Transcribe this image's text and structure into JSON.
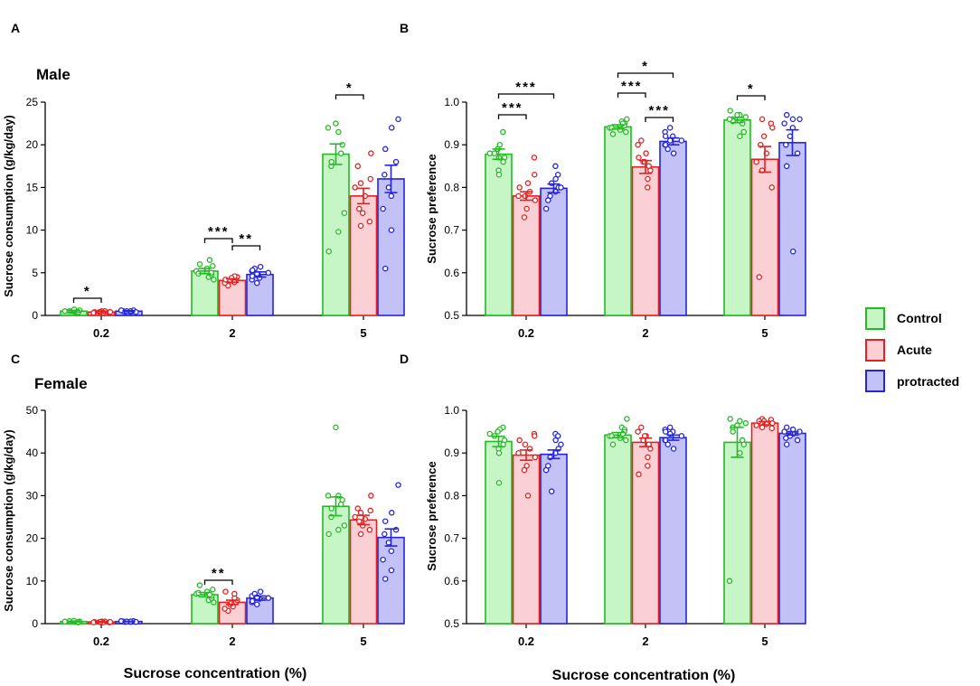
{
  "panels": {
    "A": "A",
    "B": "B",
    "C": "C",
    "D": "D"
  },
  "titles": {
    "male": "Male",
    "female": "Female"
  },
  "axis": {
    "consumption_label": "Sucrose consumption (g/kg/day)",
    "preference_label": "Sucrose preference",
    "x_label": "Sucrose concentration (%)"
  },
  "legend": [
    {
      "label": "Control",
      "color": "#22bb22",
      "fill": "#c6f5c6"
    },
    {
      "label": "Acute",
      "color": "#e52020",
      "fill": "#fbd0d4"
    },
    {
      "label": "protracted",
      "color": "#2424dd",
      "fill": "#c2c2f7"
    }
  ],
  "chart_data": [
    {
      "id": "A",
      "type": "bar",
      "title": "Male",
      "xlabel": "",
      "ylabel": "Sucrose consumption (g/kg/day)",
      "ylim": [
        0,
        25
      ],
      "yticks": [
        0,
        5,
        10,
        15,
        20,
        25
      ],
      "categories": [
        "0.2",
        "2",
        "5"
      ],
      "series": [
        {
          "name": "Control",
          "values": [
            0.5,
            5.2,
            18.9
          ],
          "sem": [
            0.1,
            0.3,
            1.2
          ],
          "points": [
            [
              0.3,
              0.4,
              0.5,
              0.5,
              0.6,
              0.4,
              0.5,
              0.6,
              0.7,
              0.5
            ],
            [
              4.2,
              4.5,
              4.8,
              5.0,
              5.2,
              5.5,
              5.8,
              6.0,
              6.5,
              4.9
            ],
            [
              7.5,
              9.8,
              12.0,
              17.5,
              18.0,
              19.0,
              20.0,
              21.5,
              22.0,
              22.5
            ]
          ]
        },
        {
          "name": "Acute",
          "values": [
            0.4,
            4.1,
            14.0
          ],
          "sem": [
            0.1,
            0.2,
            0.9
          ],
          "points": [
            [
              0.3,
              0.4,
              0.4,
              0.5,
              0.3,
              0.4,
              0.5,
              0.4,
              0.3,
              0.4
            ],
            [
              3.5,
              3.8,
              4.0,
              4.1,
              4.3,
              4.5,
              4.6,
              3.9,
              4.2,
              4.4
            ],
            [
              10.5,
              11.0,
              12.0,
              12.5,
              14.0,
              15.0,
              15.5,
              16.0,
              17.5,
              19.0
            ]
          ]
        },
        {
          "name": "protracted",
          "values": [
            0.5,
            4.8,
            16.0
          ],
          "sem": [
            0.05,
            0.3,
            1.6
          ],
          "points": [
            [
              0.4,
              0.5,
              0.5,
              0.6,
              0.5,
              0.4,
              0.5,
              0.6,
              0.5,
              0.4
            ],
            [
              3.8,
              4.2,
              4.6,
              5.0,
              5.2,
              5.5,
              5.7,
              4.4,
              4.9,
              5.3
            ],
            [
              5.5,
              10.0,
              12.5,
              14.0,
              15.0,
              16.5,
              18.0,
              19.5,
              22.0,
              23.0
            ]
          ]
        }
      ],
      "significance": [
        {
          "label": "*",
          "from": [
            0,
            0
          ],
          "to": [
            0,
            1
          ]
        },
        {
          "label": "***",
          "from": [
            1,
            0
          ],
          "to": [
            1,
            1
          ]
        },
        {
          "label": "**",
          "from": [
            1,
            1
          ],
          "to": [
            1,
            2
          ]
        },
        {
          "label": "*",
          "from": [
            2,
            0
          ],
          "to": [
            2,
            1
          ]
        }
      ]
    },
    {
      "id": "B",
      "type": "bar",
      "title": "",
      "xlabel": "",
      "ylabel": "Sucrose preference",
      "ylim": [
        0.5,
        1.0
      ],
      "yticks": [
        0.5,
        0.6,
        0.7,
        0.8,
        0.9,
        1.0
      ],
      "categories": [
        "0.2",
        "2",
        "5"
      ],
      "series": [
        {
          "name": "Control",
          "values": [
            0.878,
            0.942,
            0.958
          ],
          "sem": [
            0.012,
            0.005,
            0.006
          ],
          "points": [
            [
              0.93,
              0.9,
              0.89,
              0.88,
              0.87,
              0.86,
              0.84,
              0.83,
              0.87,
              0.88
            ],
            [
              0.96,
              0.955,
              0.95,
              0.945,
              0.94,
              0.935,
              0.93,
              0.925,
              0.95,
              0.94
            ],
            [
              0.98,
              0.97,
              0.965,
              0.96,
              0.955,
              0.95,
              0.93,
              0.92,
              0.96,
              0.97
            ]
          ]
        },
        {
          "name": "Acute",
          "values": [
            0.78,
            0.848,
            0.866
          ],
          "sem": [
            0.01,
            0.015,
            0.03
          ],
          "points": [
            [
              0.87,
              0.83,
              0.8,
              0.79,
              0.78,
              0.77,
              0.75,
              0.73,
              0.81,
              0.78
            ],
            [
              0.91,
              0.9,
              0.88,
              0.86,
              0.85,
              0.84,
              0.82,
              0.8,
              0.87,
              0.86
            ],
            [
              0.96,
              0.95,
              0.92,
              0.9,
              0.88,
              0.86,
              0.84,
              0.8,
              0.59,
              0.94
            ]
          ]
        },
        {
          "name": "protracted",
          "values": [
            0.798,
            0.908,
            0.905
          ],
          "sem": [
            0.01,
            0.008,
            0.03
          ],
          "points": [
            [
              0.85,
              0.83,
              0.82,
              0.8,
              0.79,
              0.78,
              0.77,
              0.75,
              0.81,
              0.8
            ],
            [
              0.94,
              0.93,
              0.92,
              0.91,
              0.9,
              0.89,
              0.88,
              0.92,
              0.91,
              0.9
            ],
            [
              0.97,
              0.96,
              0.95,
              0.94,
              0.92,
              0.9,
              0.88,
              0.85,
              0.65,
              0.96
            ]
          ]
        }
      ],
      "significance": [
        {
          "label": "***",
          "from": [
            0,
            0
          ],
          "to": [
            0,
            1
          ]
        },
        {
          "label": "***",
          "from": [
            0,
            0
          ],
          "to": [
            0,
            2
          ]
        },
        {
          "label": "***",
          "from": [
            1,
            0
          ],
          "to": [
            1,
            1
          ]
        },
        {
          "label": "***",
          "from": [
            1,
            1
          ],
          "to": [
            1,
            2
          ]
        },
        {
          "label": "*",
          "from": [
            1,
            0
          ],
          "to": [
            1,
            2
          ]
        },
        {
          "label": "*",
          "from": [
            2,
            0
          ],
          "to": [
            2,
            1
          ]
        }
      ]
    },
    {
      "id": "C",
      "type": "bar",
      "title": "Female",
      "xlabel": "Sucrose concentration (%)",
      "ylabel": "Sucrose consumption (g/kg/day)",
      "ylim": [
        0,
        50
      ],
      "yticks": [
        0,
        10,
        20,
        30,
        40,
        50
      ],
      "categories": [
        "0.2",
        "2",
        "5"
      ],
      "series": [
        {
          "name": "Control",
          "values": [
            0.5,
            6.8,
            27.5
          ],
          "sem": [
            0.1,
            0.5,
            2.2
          ],
          "points": [
            [
              0.3,
              0.4,
              0.5,
              0.6,
              0.5,
              0.4,
              0.6,
              0.5,
              0.7,
              0.5
            ],
            [
              5.0,
              5.5,
              6.0,
              6.5,
              7.0,
              7.5,
              8.0,
              9.0,
              6.8,
              7.2
            ],
            [
              21.0,
              22.0,
              23.0,
              25.0,
              27.0,
              28.0,
              29.0,
              30.0,
              30.0,
              46.0
            ]
          ]
        },
        {
          "name": "Acute",
          "values": [
            0.4,
            5.0,
            24.3
          ],
          "sem": [
            0.1,
            0.5,
            1.1
          ],
          "points": [
            [
              0.3,
              0.4,
              0.4,
              0.5,
              0.3,
              0.4,
              0.5,
              0.4,
              0.3,
              0.4
            ],
            [
              3.0,
              3.5,
              4.0,
              4.5,
              5.0,
              5.5,
              6.0,
              7.0,
              7.5,
              4.8
            ],
            [
              21.0,
              22.0,
              23.0,
              24.0,
              24.5,
              25.0,
              26.0,
              26.5,
              27.0,
              30.0
            ]
          ]
        },
        {
          "name": "protracted",
          "values": [
            0.5,
            6.0,
            20.2
          ],
          "sem": [
            0.05,
            0.5,
            2.0
          ],
          "points": [
            [
              0.4,
              0.5,
              0.5,
              0.6,
              0.5,
              0.4,
              0.5,
              0.6,
              0.5,
              0.4
            ],
            [
              4.5,
              5.0,
              5.5,
              6.0,
              6.5,
              7.0,
              7.5,
              5.8,
              6.2,
              5.3
            ],
            [
              10.5,
              12.5,
              15.0,
              17.0,
              19.0,
              21.0,
              22.0,
              24.0,
              26.0,
              32.5
            ]
          ]
        }
      ],
      "significance": [
        {
          "label": "**",
          "from": [
            1,
            0
          ],
          "to": [
            1,
            1
          ]
        }
      ]
    },
    {
      "id": "D",
      "type": "bar",
      "title": "",
      "xlabel": "Sucrose concentration (%)",
      "ylabel": "Sucrose preference",
      "ylim": [
        0.5,
        1.0
      ],
      "yticks": [
        0.5,
        0.6,
        0.7,
        0.8,
        0.9,
        1.0
      ],
      "categories": [
        "0.2",
        "2",
        "5"
      ],
      "series": [
        {
          "name": "Control",
          "values": [
            0.927,
            0.942,
            0.925
          ],
          "sem": [
            0.012,
            0.006,
            0.035
          ],
          "points": [
            [
              0.96,
              0.955,
              0.95,
              0.94,
              0.93,
              0.92,
              0.91,
              0.9,
              0.83,
              0.945
            ],
            [
              0.98,
              0.96,
              0.955,
              0.95,
              0.94,
              0.935,
              0.93,
              0.92,
              0.945,
              0.94
            ],
            [
              0.98,
              0.975,
              0.97,
              0.96,
              0.95,
              0.93,
              0.92,
              0.9,
              0.6,
              0.965
            ]
          ]
        },
        {
          "name": "Acute",
          "values": [
            0.895,
            0.925,
            0.97
          ],
          "sem": [
            0.012,
            0.01,
            0.004
          ],
          "points": [
            [
              0.945,
              0.94,
              0.93,
              0.91,
              0.9,
              0.89,
              0.87,
              0.86,
              0.8,
              0.92
            ],
            [
              0.96,
              0.95,
              0.94,
              0.93,
              0.92,
              0.91,
              0.89,
              0.87,
              0.85,
              0.94
            ],
            [
              0.98,
              0.978,
              0.975,
              0.97,
              0.968,
              0.965,
              0.96,
              0.958,
              0.975,
              0.97
            ]
          ]
        },
        {
          "name": "protracted",
          "values": [
            0.897,
            0.936,
            0.946
          ],
          "sem": [
            0.01,
            0.006,
            0.004
          ],
          "points": [
            [
              0.945,
              0.94,
              0.93,
              0.91,
              0.9,
              0.89,
              0.87,
              0.86,
              0.81,
              0.92
            ],
            [
              0.96,
              0.955,
              0.95,
              0.94,
              0.93,
              0.92,
              0.91,
              0.95,
              0.945,
              0.93
            ],
            [
              0.96,
              0.955,
              0.95,
              0.945,
              0.94,
              0.935,
              0.93,
              0.92,
              0.955,
              0.95
            ]
          ]
        }
      ],
      "significance": []
    }
  ]
}
